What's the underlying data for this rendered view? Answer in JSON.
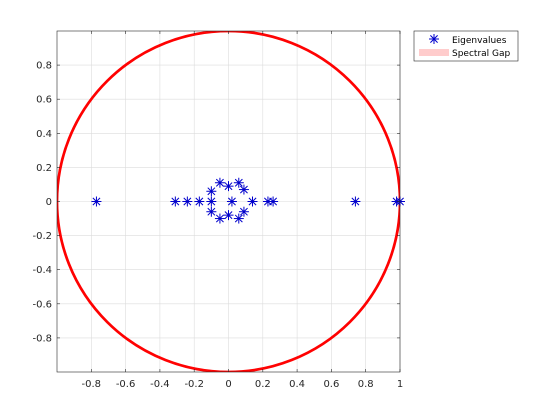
{
  "chart_data": {
    "type": "scatter",
    "title": "",
    "xlabel": "",
    "ylabel": "",
    "xlim": [
      -1.0,
      1.0
    ],
    "ylim": [
      -1.0,
      1.0
    ],
    "grid": true,
    "legend_placement": "outside-top-right",
    "x_ticks": [
      -0.8,
      -0.6,
      -0.4,
      -0.2,
      0,
      0.2,
      0.4,
      0.6,
      0.8,
      1
    ],
    "y_ticks": [
      -0.8,
      -0.6,
      -0.4,
      -0.2,
      0,
      0.2,
      0.4,
      0.6,
      0.8
    ],
    "x_tick_labels": [
      "-0.8",
      "-0.6",
      "-0.4",
      "-0.2",
      "0",
      "0.2",
      "0.4",
      "0.6",
      "0.8",
      "1"
    ],
    "y_tick_labels": [
      "-0.8",
      "-0.6",
      "-0.4",
      "-0.2",
      "0",
      "0.2",
      "0.4",
      "0.6",
      "0.8"
    ],
    "series": [
      {
        "name": "Eigenvalues",
        "kind": "scatter",
        "marker": "asterisk",
        "color": "#0000cc",
        "points": [
          [
            -0.77,
            0
          ],
          [
            -0.31,
            0
          ],
          [
            -0.24,
            0
          ],
          [
            -0.17,
            0
          ],
          [
            -0.1,
            0
          ],
          [
            -0.1,
            0.06
          ],
          [
            -0.1,
            -0.06
          ],
          [
            -0.05,
            0.11
          ],
          [
            -0.05,
            -0.1
          ],
          [
            0,
            0.09
          ],
          [
            0,
            -0.08
          ],
          [
            0.02,
            0
          ],
          [
            0.06,
            0.11
          ],
          [
            0.06,
            -0.1
          ],
          [
            0.09,
            0.07
          ],
          [
            0.09,
            -0.06
          ],
          [
            0.14,
            0
          ],
          [
            0.23,
            0
          ],
          [
            0.26,
            0
          ],
          [
            0.74,
            0
          ],
          [
            0.98,
            0
          ],
          [
            1.0,
            0
          ]
        ]
      },
      {
        "name": "Spectral Gap",
        "kind": "circle",
        "radius": 1.0,
        "color": "#ff0000",
        "legend_color": "#ffcccc"
      }
    ]
  }
}
